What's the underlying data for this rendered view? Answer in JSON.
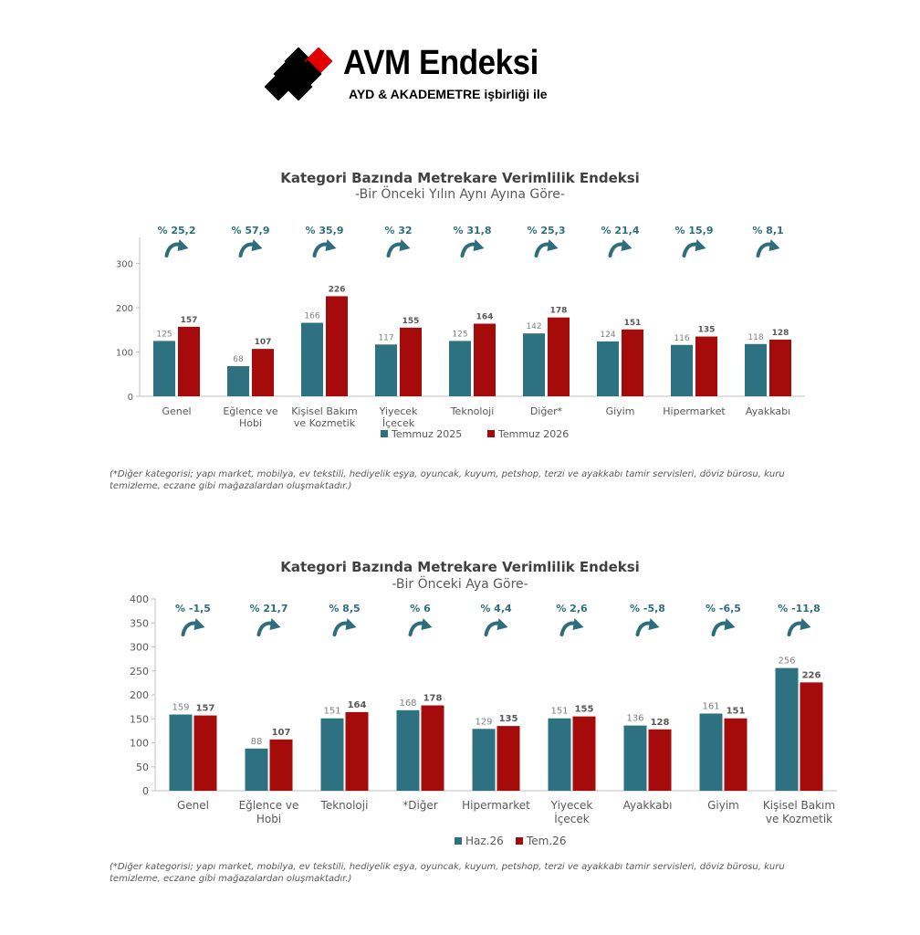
{
  "logo": {
    "title": "AVM Endeksi",
    "subtitle": "AYD & AKADEMETRE işbirliği ile"
  },
  "colors": {
    "teal": "#2E7180",
    "red": "#A50B0B",
    "axis": "#BFBFBF",
    "text": "#595959",
    "pct": "#2E6E7C"
  },
  "chart_data": [
    {
      "type": "bar",
      "title": "Kategori Bazında Metrekare Verimlilik Endeksi",
      "subtitle": "-Bir Önceki Yılın Aynı Ayına Göre-",
      "categories": [
        "Genel",
        "Eğlence ve\nHobi",
        "Kişisel Bakım\nve Kozmetik",
        "Yiyecek\nİçecek",
        "Teknoloji",
        "Diğer*",
        "Giyim",
        "Hipermarket",
        "Ayakkabı"
      ],
      "series": [
        {
          "name": "Temmuz 2025",
          "values": [
            125,
            68,
            166,
            117,
            125,
            142,
            124,
            116,
            118
          ]
        },
        {
          "name": "Temmuz 2026",
          "values": [
            157,
            107,
            226,
            155,
            164,
            178,
            151,
            135,
            128
          ]
        }
      ],
      "changes": [
        "% 25,2",
        "% 57,9",
        "% 35,9",
        "% 32",
        "% 31,8",
        "% 25,3",
        "% 21,4",
        "% 15,9",
        "% 8,1"
      ],
      "yticks": [
        0,
        100,
        200,
        300
      ],
      "ylim": [
        0,
        330
      ],
      "legend": "bottom",
      "footnote": "(*Diğer kategorisi; yapı market, mobilya, ev tekstili, hediyelik eşya, oyuncak, kuyum, petshop, terzi ve ayakkabı tamir servisleri, döviz bürosu, kuru temizleme, eczane gibi mağazalardan oluşmaktadır.)"
    },
    {
      "type": "bar",
      "title": "Kategori Bazında Metrekare Verimlilik Endeksi",
      "subtitle": "-Bir Önceki Aya Göre-",
      "categories": [
        "Genel",
        "Eğlence ve\nHobi",
        "Teknoloji",
        "*Diğer",
        "Hipermarket",
        "Yiyecek\nİçecek",
        "Ayakkabı",
        "Giyim",
        "Kişisel Bakım\nve Kozmetik"
      ],
      "series": [
        {
          "name": "Haz.26",
          "values": [
            159,
            88,
            151,
            168,
            129,
            151,
            136,
            161,
            256
          ]
        },
        {
          "name": "Tem.26",
          "values": [
            157,
            107,
            164,
            178,
            135,
            155,
            128,
            151,
            226
          ]
        }
      ],
      "changes": [
        "% -1,5",
        "% 21,7",
        "% 8,5",
        "% 6",
        "% 4,4",
        "% 2,6",
        "% -5,8",
        "% -6,5",
        "% -11,8"
      ],
      "yticks": [
        0,
        50,
        100,
        150,
        200,
        250,
        300,
        350,
        400
      ],
      "ylim": [
        0,
        400
      ],
      "legend": "bottom",
      "footnote": "(*Diğer kategorisi; yapı market, mobilya, ev tekstili, hediyelik eşya, oyuncak, kuyum, petshop, terzi ve ayakkabı tamir servisleri, döviz bürosu, kuru temizleme, eczane gibi mağazalardan oluşmaktadır.)"
    }
  ]
}
